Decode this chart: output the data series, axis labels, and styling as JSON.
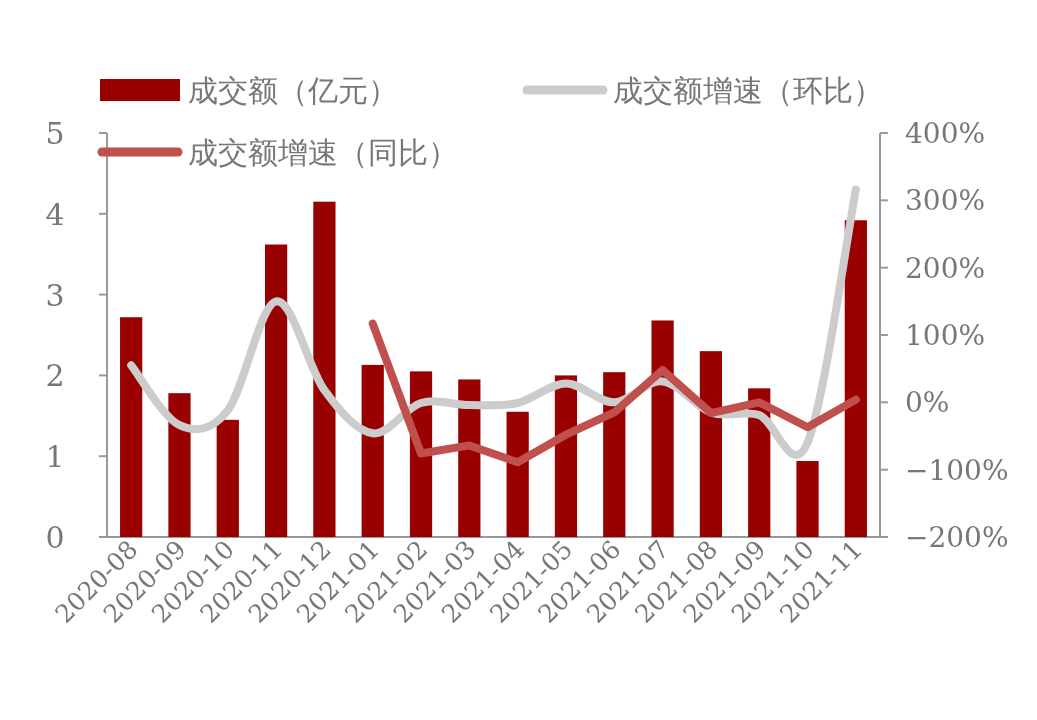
{
  "chart_data": {
    "type": "bar",
    "categories": [
      "2020-08",
      "2020-09",
      "2020-10",
      "2020-11",
      "2020-12",
      "2021-01",
      "2021-02",
      "2021-03",
      "2021-04",
      "2021-05",
      "2021-06",
      "2021-07",
      "2021-08",
      "2021-09",
      "2021-10",
      "2021-11"
    ],
    "series": [
      {
        "name": "成交额（亿元）",
        "color": "#990000",
        "values": [
          2.72,
          1.78,
          1.45,
          3.62,
          4.15,
          2.13,
          2.05,
          1.95,
          1.55,
          2.0,
          2.04,
          2.68,
          2.3,
          1.84,
          0.94,
          3.92
        ]
      },
      {
        "name": "成交额增速（环比）",
        "type": "line",
        "axis": "y2",
        "color": "#cccccc",
        "values": [
          55,
          -34,
          -12,
          150,
          18,
          -46,
          -1,
          -4,
          -1,
          28,
          0,
          31,
          -15,
          -19,
          -60,
          316
        ]
      },
      {
        "name": "成交额增速（同比）",
        "type": "line",
        "axis": "y2",
        "color": "#c0504d",
        "values": [
          null,
          null,
          null,
          null,
          null,
          117,
          -76,
          -64,
          -89,
          -48,
          -15,
          48,
          -16,
          0,
          -37,
          4
        ]
      }
    ],
    "ylim": [
      0,
      5
    ],
    "yticks": [
      0,
      1,
      2,
      3,
      4,
      5
    ],
    "y2lim": [
      -200,
      400
    ],
    "y2ticks": [
      {
        "value": 400,
        "label": "400%"
      },
      {
        "value": 300,
        "label": "300%"
      },
      {
        "value": 200,
        "label": "200%"
      },
      {
        "value": 100,
        "label": "100%"
      },
      {
        "value": 0,
        "label": "0%"
      },
      {
        "value": -100,
        "label": "−100%"
      },
      {
        "value": -200,
        "label": "−200%"
      }
    ],
    "grid": false,
    "legend": "top",
    "line_style": "solid",
    "marker": "none"
  }
}
